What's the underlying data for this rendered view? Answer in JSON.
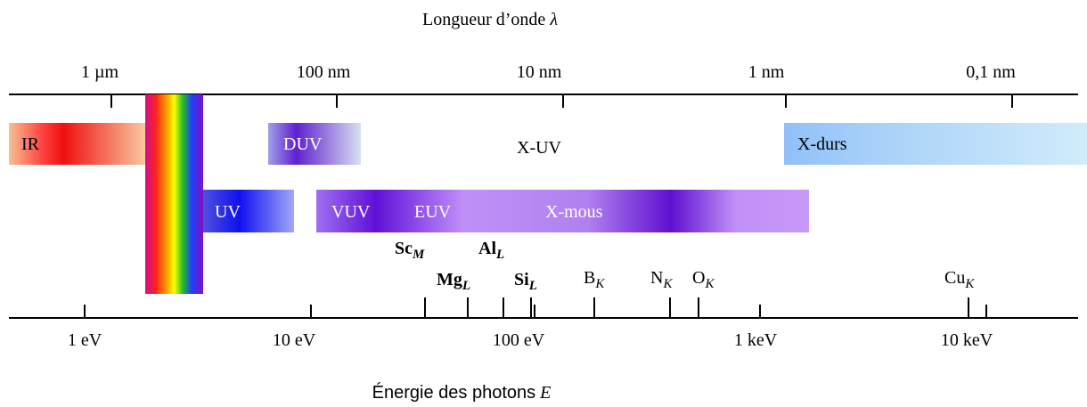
{
  "wavelength_axis": {
    "title": "Longueur d’onde",
    "symbol": "λ",
    "labels": [
      "1 µm",
      "100 nm",
      "10 nm",
      "1 nm",
      "0,1 nm"
    ]
  },
  "bands": {
    "ir": "IR",
    "duv": "DUV",
    "xuv": "X-UV",
    "xdurs": "X-durs",
    "uv": "UV",
    "vuv": "VUV",
    "euv": "EUV",
    "xmous": "X-mous"
  },
  "edges": [
    {
      "symbol": "Sc",
      "sub": "M"
    },
    {
      "symbol": "Al",
      "sub": "L"
    },
    {
      "symbol": "Mg",
      "sub": "L"
    },
    {
      "symbol": "Si",
      "sub": "L"
    },
    {
      "symbol": "B",
      "sub": "K"
    },
    {
      "symbol": "N",
      "sub": "K"
    },
    {
      "symbol": "O",
      "sub": "K"
    },
    {
      "symbol": "Cu",
      "sub": "K"
    }
  ],
  "energy_axis": {
    "title": "Énergie des photons",
    "symbol": "E",
    "labels": [
      "1 eV",
      "10 eV",
      "100 eV",
      "1 keV",
      "10 keV"
    ]
  }
}
